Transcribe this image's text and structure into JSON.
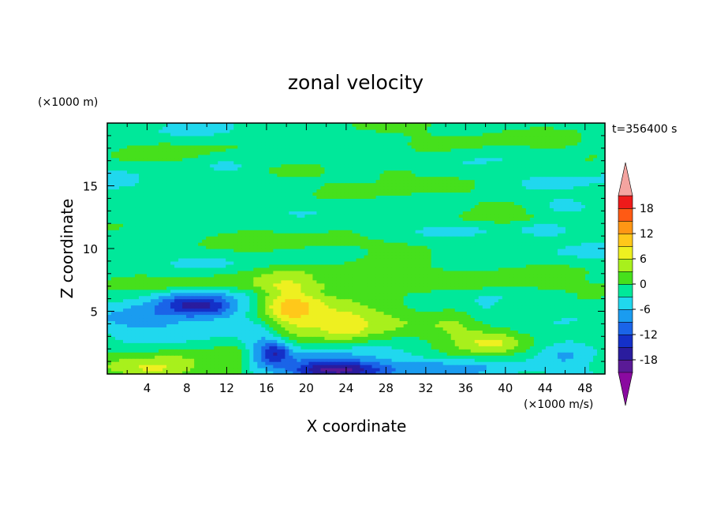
{
  "chart_data": {
    "type": "heatmap",
    "title": "zonal velocity",
    "xlabel": "X coordinate",
    "ylabel": "Z coordinate",
    "x_unit": "(×1000 m/s)",
    "y_unit": "(×1000 m)",
    "time_label": "t=356400 s",
    "xlim": [
      0,
      50
    ],
    "ylim": [
      0,
      20
    ],
    "x_ticks": [
      4,
      8,
      12,
      16,
      20,
      24,
      28,
      32,
      36,
      40,
      44,
      48
    ],
    "y_ticks": [
      5,
      10,
      15
    ],
    "colorbar": {
      "levels": [
        -21,
        -18,
        -15,
        -12,
        -9,
        -6,
        -3,
        0,
        3,
        6,
        9,
        12,
        15,
        18,
        21
      ],
      "tick_labels": [
        18,
        12,
        6,
        0,
        -6,
        -12,
        -18
      ],
      "colors": [
        "#5a1a96",
        "#2a1c9e",
        "#1430c8",
        "#1a64e8",
        "#1a9cf0",
        "#20d8ee",
        "#00e89a",
        "#46e01c",
        "#a8f01c",
        "#eef020",
        "#ffc81a",
        "#ff9614",
        "#ff5a14",
        "#ee1a1a"
      ],
      "over_color": "#f4a4a0",
      "under_color": "#8a0aa0"
    },
    "background_value": -2,
    "features": [
      {
        "x": 9,
        "z": 5.5,
        "sx": 4.0,
        "sz": 0.9,
        "value": -9,
        "tilt": 0.3
      },
      {
        "x": 9,
        "z": 5.5,
        "sx": 2.5,
        "sz": 0.6,
        "value": -6,
        "tilt": 0.3
      },
      {
        "x": 4,
        "z": 4.3,
        "sx": 3.0,
        "sz": 0.8,
        "value": -4,
        "tilt": 0
      },
      {
        "x": 6,
        "z": 1.0,
        "sx": 5.0,
        "sz": 0.8,
        "value": 4,
        "tilt": -0.15
      },
      {
        "x": 5,
        "z": 0.3,
        "sx": 3.0,
        "sz": 0.5,
        "value": 5,
        "tilt": 0
      },
      {
        "x": 13,
        "z": 1.3,
        "sx": 1.2,
        "sz": 1.0,
        "value": 3,
        "tilt": 0
      },
      {
        "x": 17,
        "z": 1.8,
        "sx": 1.0,
        "sz": 0.6,
        "value": -9,
        "tilt": 0
      },
      {
        "x": 15.5,
        "z": 2.2,
        "sx": 1.5,
        "sz": 1.5,
        "value": -5,
        "tilt": 0
      },
      {
        "x": 23,
        "z": 0.3,
        "sx": 3.5,
        "sz": 0.5,
        "value": -13,
        "tilt": 0
      },
      {
        "x": 23,
        "z": 0.8,
        "sx": 5.0,
        "sz": 1.0,
        "value": -6,
        "tilt": 0
      },
      {
        "x": 18,
        "z": 5.5,
        "sx": 2.0,
        "sz": 1.5,
        "value": 7,
        "tilt": 0
      },
      {
        "x": 21,
        "z": 4.5,
        "sx": 4.0,
        "sz": 2.0,
        "value": 6,
        "tilt": 0
      },
      {
        "x": 24,
        "z": 4.0,
        "sx": 1.5,
        "sz": 0.8,
        "value": 4,
        "tilt": 0
      },
      {
        "x": 28,
        "z": 5.0,
        "sx": 2.5,
        "sz": 1.5,
        "value": 4,
        "tilt": 0
      },
      {
        "x": 35,
        "z": 3.0,
        "sx": 3.0,
        "sz": 1.5,
        "value": 4,
        "tilt": 0
      },
      {
        "x": 39,
        "z": 2.5,
        "sx": 2.0,
        "sz": 0.6,
        "value": 5,
        "tilt": 0
      },
      {
        "x": 41,
        "z": 5.0,
        "sx": 5.0,
        "sz": 1.2,
        "value": 2,
        "tilt": 0
      },
      {
        "x": 38,
        "z": 4.8,
        "sx": 1.5,
        "sz": 0.7,
        "value": -3.5,
        "tilt": 0
      },
      {
        "x": 46,
        "z": 1.5,
        "sx": 2.0,
        "sz": 1.0,
        "value": -4,
        "tilt": 0
      },
      {
        "x": 35,
        "z": 0.5,
        "sx": 4.0,
        "sz": 0.5,
        "value": -4,
        "tilt": 0
      },
      {
        "x": 25,
        "z": 8.0,
        "sx": 20.0,
        "sz": 0.6,
        "value": 2,
        "tilt": 0
      },
      {
        "x": 25,
        "z": 7.0,
        "sx": 25.0,
        "sz": 0.3,
        "value": 2,
        "tilt": 0
      },
      {
        "x": 12,
        "z": 7.5,
        "sx": 10.0,
        "sz": 0.5,
        "value": 2.5,
        "tilt": 0
      },
      {
        "x": 25,
        "z": 10.5,
        "sx": 20.0,
        "sz": 0.5,
        "value": 2,
        "tilt": 0
      },
      {
        "x": 20,
        "z": 12.0,
        "sx": 6.0,
        "sz": 0.6,
        "value": 2,
        "tilt": 0
      },
      {
        "x": 40,
        "z": 12.3,
        "sx": 6.0,
        "sz": 0.4,
        "value": 2.5,
        "tilt": 0
      },
      {
        "x": 10,
        "z": 14.0,
        "sx": 8.0,
        "sz": 0.6,
        "value": 1.5,
        "tilt": 0
      },
      {
        "x": 30,
        "z": 15.0,
        "sx": 8.0,
        "sz": 0.8,
        "value": 1.5,
        "tilt": 0
      },
      {
        "x": 30,
        "z": 18.5,
        "sx": 15.0,
        "sz": 1.0,
        "value": 2,
        "tilt": 0
      },
      {
        "x": 10,
        "z": 18.0,
        "sx": 6.0,
        "sz": 0.6,
        "value": 1.5,
        "tilt": 0
      },
      {
        "x": 29,
        "z": 16.0,
        "sx": 1.5,
        "sz": 0.4,
        "value": 4,
        "tilt": 0
      },
      {
        "x": 42,
        "z": 16.5,
        "sx": 3.0,
        "sz": 0.4,
        "value": 2,
        "tilt": 0
      },
      {
        "x": 46,
        "z": 13.5,
        "sx": 1.5,
        "sz": 0.4,
        "value": -4,
        "tilt": 0
      },
      {
        "x": 44,
        "z": 11.5,
        "sx": 1.5,
        "sz": 0.4,
        "value": -3.5,
        "tilt": 0
      },
      {
        "x": 12,
        "z": 16.5,
        "sx": 1.2,
        "sz": 0.3,
        "value": -3.5,
        "tilt": 0
      }
    ]
  }
}
